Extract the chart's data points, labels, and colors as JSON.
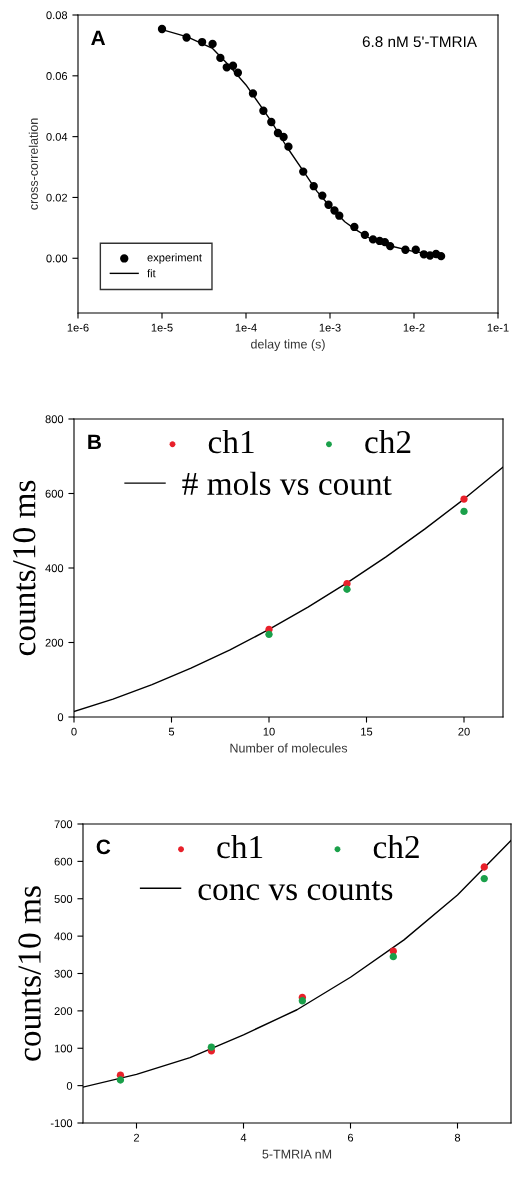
{
  "chart_data": [
    {
      "type": "scatter",
      "xlabel": "delay time (s)",
      "ylabel": "cross-correlation",
      "log": "x",
      "annotations": [
        "A",
        "6.8 nM 5'-TMRIA"
      ],
      "xlim": [
        1e-06,
        0.1
      ],
      "xticks": [
        {
          "value": 1e-06,
          "label": "1e-6"
        },
        {
          "value": 1e-05,
          "label": "1e-5"
        },
        {
          "value": 0.0001,
          "label": "1e-4"
        },
        {
          "value": 0.001,
          "label": "1e-3"
        },
        {
          "value": 0.01,
          "label": "1e-2"
        },
        {
          "value": 0.1,
          "label": "1e-1"
        }
      ],
      "ylim": [
        -0.018,
        0.08
      ],
      "yticks": [
        {
          "value": 0,
          "label": "0.00"
        },
        {
          "value": 0.02,
          "label": "0.02"
        },
        {
          "value": 0.04,
          "label": "0.04"
        },
        {
          "value": 0.06,
          "label": "0.06"
        },
        {
          "value": 0.08,
          "label": "0.08"
        }
      ],
      "legend": "bottom left",
      "grid": false,
      "series": [
        {
          "name": "experiment",
          "type": "scatter",
          "marker": "circle",
          "color": "#000000",
          "x": [
            1e-05,
            1.96e-05,
            3e-05,
            4e-05,
            4.95e-05,
            5.9e-05,
            7e-05,
            8e-05,
            0.000121,
            0.000161,
            0.0002,
            0.00024,
            0.00028,
            0.00032,
            0.00048,
            0.00064,
            0.00081,
            0.00096,
            0.00113,
            0.00129,
            0.00195,
            0.0026,
            0.00325,
            0.0039,
            0.0045,
            0.0052,
            0.0079,
            0.0105,
            0.0131,
            0.0155,
            0.0183,
            0.021
          ],
          "values": [
            0.0754,
            0.0726,
            0.0711,
            0.0705,
            0.0659,
            0.0628,
            0.0633,
            0.061,
            0.0542,
            0.0485,
            0.0448,
            0.0412,
            0.0399,
            0.0367,
            0.0285,
            0.0237,
            0.0206,
            0.0176,
            0.0157,
            0.014,
            0.0103,
            0.0077,
            0.0062,
            0.0057,
            0.0053,
            0.004,
            0.0028,
            0.0028,
            0.0013,
            0.0009,
            0.0014,
            0.0007
          ]
        },
        {
          "name": "fit",
          "type": "line",
          "marker": "none",
          "line_style": "solid",
          "color": "#000000",
          "x": [
            1e-05,
            2e-05,
            4e-05,
            6e-05,
            0.0001,
            0.00015,
            0.0002,
            0.0003,
            0.0005,
            0.0007,
            0.001,
            0.0015,
            0.002,
            0.003,
            0.005,
            0.01,
            0.02
          ],
          "values": [
            0.0752,
            0.0728,
            0.069,
            0.064,
            0.057,
            0.05,
            0.045,
            0.037,
            0.028,
            0.022,
            0.017,
            0.012,
            0.0095,
            0.0065,
            0.0042,
            0.0022,
            0.001
          ]
        }
      ]
    },
    {
      "type": "scatter",
      "xlabel": "Number of molecules",
      "ylabel": "counts/10 ms",
      "annotations": [
        "B"
      ],
      "xlim": [
        0,
        22
      ],
      "xticks": [
        0,
        5,
        10,
        15,
        20
      ],
      "ylim": [
        0,
        800
      ],
      "yticks": [
        0,
        200,
        400,
        600,
        800
      ],
      "legend": "top",
      "grid": false,
      "series": [
        {
          "name": "ch1",
          "type": "scatter",
          "marker": "circle",
          "color": "#e8202a",
          "x": [
            10,
            14,
            20
          ],
          "values": [
            235,
            358,
            585
          ]
        },
        {
          "name": "ch2",
          "type": "scatter",
          "marker": "circle",
          "color": "#1aa04a",
          "x": [
            10,
            14,
            20
          ],
          "values": [
            222,
            343,
            552
          ]
        },
        {
          "name": "# mols vs count",
          "type": "line",
          "marker": "none",
          "line_style": "solid",
          "color": "#000000",
          "x": [
            0,
            2,
            4,
            6,
            8,
            10,
            12,
            14,
            16,
            18,
            20,
            22
          ],
          "values": [
            15,
            48,
            87,
            131,
            180,
            235,
            295,
            360,
            430,
            505,
            585,
            671
          ]
        }
      ]
    },
    {
      "type": "scatter",
      "xlabel": "5-TMRIA nM",
      "ylabel": "counts/10 ms",
      "annotations": [
        "C"
      ],
      "xlim": [
        1,
        9
      ],
      "xticks": [
        2,
        4,
        6,
        8
      ],
      "ylim": [
        -100,
        700
      ],
      "yticks": [
        -100,
        0,
        100,
        200,
        300,
        400,
        500,
        600,
        700
      ],
      "legend": "top",
      "grid": false,
      "series": [
        {
          "name": "ch1",
          "type": "scatter",
          "marker": "circle",
          "color": "#e8202a",
          "x": [
            1.7,
            3.4,
            5.1,
            6.8,
            8.5
          ],
          "values": [
            28,
            93,
            236,
            360,
            585
          ]
        },
        {
          "name": "ch2",
          "type": "scatter",
          "marker": "circle",
          "color": "#1aa04a",
          "x": [
            1.7,
            3.4,
            5.1,
            6.8,
            8.5
          ],
          "values": [
            15,
            103,
            227,
            345,
            554
          ]
        },
        {
          "name": "conc vs counts",
          "type": "line",
          "marker": "none",
          "line_style": "solid",
          "color": "#000000",
          "x": [
            1,
            2,
            3,
            4,
            5,
            6,
            7,
            8,
            9
          ],
          "values": [
            -4,
            30,
            75,
            136,
            203,
            290,
            390,
            510,
            656
          ]
        }
      ]
    }
  ]
}
